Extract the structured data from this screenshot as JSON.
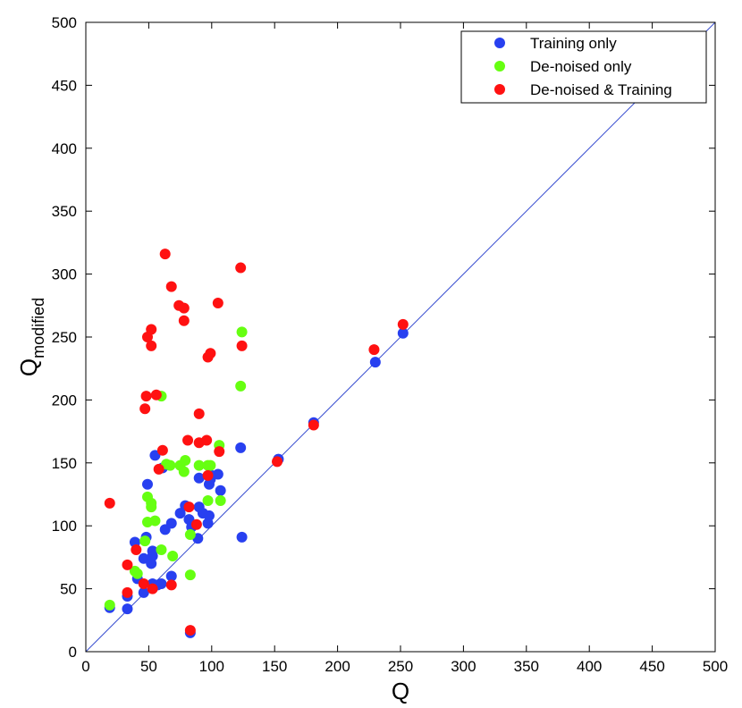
{
  "chart_data": {
    "type": "scatter",
    "xlabel": "Q",
    "ylabel": "Q",
    "ylabel_subscript": "modified",
    "xlim": [
      0,
      500
    ],
    "ylim": [
      0,
      500
    ],
    "xticks": [
      0,
      50,
      100,
      150,
      200,
      250,
      300,
      350,
      400,
      450,
      500
    ],
    "yticks": [
      0,
      50,
      100,
      150,
      200,
      250,
      300,
      350,
      400,
      450,
      500
    ],
    "grid": false,
    "legend_position": "top-right",
    "reference_line": {
      "from": [
        0,
        0
      ],
      "to": [
        500,
        500
      ],
      "color": "#3a4fd0"
    },
    "series": [
      {
        "name": "Training only",
        "color": "#2840f0",
        "points": [
          [
            19,
            35
          ],
          [
            33,
            34
          ],
          [
            33,
            44
          ],
          [
            39,
            87
          ],
          [
            41,
            58
          ],
          [
            46,
            74
          ],
          [
            46,
            47
          ],
          [
            48,
            91
          ],
          [
            49,
            133
          ],
          [
            52,
            70
          ],
          [
            53,
            80
          ],
          [
            53,
            54
          ],
          [
            53,
            76
          ],
          [
            55,
            156
          ],
          [
            57,
            53
          ],
          [
            60,
            54
          ],
          [
            61,
            146
          ],
          [
            63,
            97
          ],
          [
            68,
            102
          ],
          [
            68,
            60
          ],
          [
            75,
            110
          ],
          [
            79,
            116
          ],
          [
            82,
            105
          ],
          [
            83,
            15
          ],
          [
            84,
            99
          ],
          [
            89,
            90
          ],
          [
            90,
            138
          ],
          [
            90,
            115
          ],
          [
            93,
            110
          ],
          [
            97,
            102
          ],
          [
            98,
            108
          ],
          [
            98,
            133
          ],
          [
            99,
            137
          ],
          [
            100,
            140
          ],
          [
            105,
            141
          ],
          [
            107,
            128
          ],
          [
            123,
            162
          ],
          [
            124,
            91
          ],
          [
            153,
            153
          ],
          [
            181,
            182
          ],
          [
            230,
            230
          ],
          [
            252,
            253
          ]
        ]
      },
      {
        "name": "De-noised only",
        "color": "#66ff11",
        "points": [
          [
            19,
            37
          ],
          [
            39,
            64
          ],
          [
            41,
            62
          ],
          [
            47,
            88
          ],
          [
            49,
            103
          ],
          [
            49,
            123
          ],
          [
            52,
            115
          ],
          [
            52,
            118
          ],
          [
            55,
            104
          ],
          [
            60,
            203
          ],
          [
            60,
            81
          ],
          [
            64,
            149
          ],
          [
            67,
            148
          ],
          [
            69,
            76
          ],
          [
            75,
            148
          ],
          [
            78,
            143
          ],
          [
            79,
            152
          ],
          [
            83,
            93
          ],
          [
            83,
            61
          ],
          [
            90,
            148
          ],
          [
            97,
            120
          ],
          [
            97,
            148
          ],
          [
            99,
            148
          ],
          [
            106,
            164
          ],
          [
            107,
            120
          ],
          [
            123,
            211
          ],
          [
            124,
            254
          ]
        ]
      },
      {
        "name": "De-noised & Training",
        "color": "#ff1111",
        "points": [
          [
            19,
            118
          ],
          [
            33,
            69
          ],
          [
            33,
            47
          ],
          [
            40,
            81
          ],
          [
            46,
            54
          ],
          [
            47,
            193
          ],
          [
            48,
            203
          ],
          [
            49,
            250
          ],
          [
            52,
            243
          ],
          [
            52,
            256
          ],
          [
            53,
            50
          ],
          [
            56,
            204
          ],
          [
            58,
            145
          ],
          [
            61,
            160
          ],
          [
            63,
            316
          ],
          [
            68,
            290
          ],
          [
            68,
            53
          ],
          [
            74,
            275
          ],
          [
            78,
            273
          ],
          [
            78,
            263
          ],
          [
            81,
            168
          ],
          [
            82,
            115
          ],
          [
            83,
            17
          ],
          [
            88,
            101
          ],
          [
            90,
            189
          ],
          [
            90,
            166
          ],
          [
            96,
            168
          ],
          [
            97,
            140
          ],
          [
            97,
            234
          ],
          [
            99,
            237
          ],
          [
            105,
            277
          ],
          [
            106,
            159
          ],
          [
            123,
            305
          ],
          [
            124,
            243
          ],
          [
            152,
            151
          ],
          [
            181,
            180
          ],
          [
            229,
            240
          ],
          [
            252,
            260
          ]
        ]
      }
    ]
  }
}
